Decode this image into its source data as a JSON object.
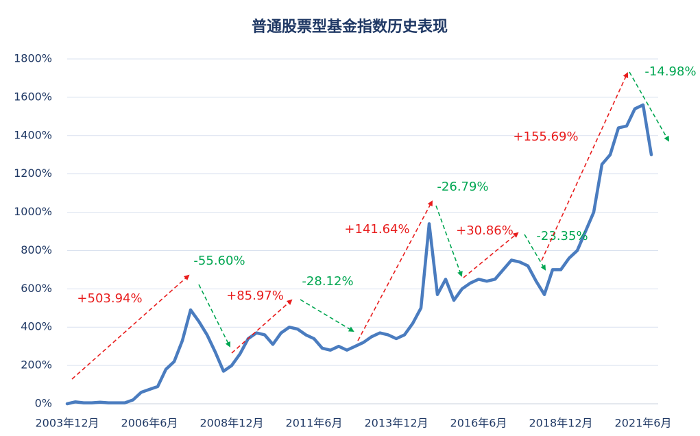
{
  "chart_data": {
    "type": "line",
    "title": "普通股票型基金指数历史表现",
    "categories": [
      "2003年12月",
      null,
      null,
      null,
      null,
      null,
      null,
      null,
      null,
      null,
      "2006年6月",
      null,
      null,
      null,
      null,
      null,
      null,
      null,
      null,
      null,
      "2008年12月",
      null,
      null,
      null,
      null,
      null,
      null,
      null,
      null,
      null,
      "2011年6月",
      null,
      null,
      null,
      null,
      null,
      null,
      null,
      null,
      null,
      "2013年12月",
      null,
      null,
      null,
      null,
      null,
      null,
      null,
      null,
      null,
      "2016年6月",
      null,
      null,
      null,
      null,
      null,
      null,
      null,
      null,
      null,
      "2018年12月",
      null,
      null,
      null,
      null,
      null,
      null,
      null,
      null,
      null,
      "2021年6月",
      null
    ],
    "series": [
      {
        "name": "普通股票型基金指数",
        "color": "#4a7cbf",
        "values": [
          0,
          10,
          5,
          5,
          8,
          5,
          5,
          5,
          20,
          60,
          75,
          90,
          180,
          220,
          330,
          490,
          430,
          360,
          270,
          170,
          200,
          260,
          340,
          370,
          360,
          310,
          370,
          400,
          390,
          360,
          340,
          290,
          280,
          300,
          280,
          300,
          320,
          350,
          370,
          360,
          340,
          360,
          420,
          500,
          940,
          570,
          650,
          540,
          600,
          630,
          650,
          640,
          650,
          700,
          750,
          740,
          720,
          640,
          570,
          700,
          700,
          760,
          800,
          900,
          1000,
          1250,
          1300,
          1440,
          1450,
          1540,
          1560,
          1300
        ]
      }
    ],
    "ylim": [
      0,
      1800
    ],
    "yticks": [
      {
        "value": 0,
        "label": "0%"
      },
      {
        "value": 200,
        "label": "200%"
      },
      {
        "value": 400,
        "label": "400%"
      },
      {
        "value": 600,
        "label": "600%"
      },
      {
        "value": 800,
        "label": "800%"
      },
      {
        "value": 1000,
        "label": "1000%"
      },
      {
        "value": 1200,
        "label": "1200%"
      },
      {
        "value": 1400,
        "label": "1400%"
      },
      {
        "value": 1600,
        "label": "1600%"
      },
      {
        "value": 1800,
        "label": "1800%"
      }
    ],
    "grid": true,
    "annotations": [
      {
        "text": "+503.94%",
        "color": "#e81c1c"
      },
      {
        "text": "-55.60%",
        "color": "#00a651"
      },
      {
        "text": "+85.97%",
        "color": "#e81c1c"
      },
      {
        "text": "-28.12%",
        "color": "#00a651"
      },
      {
        "text": "+141.64%",
        "color": "#e81c1c"
      },
      {
        "text": "-26.79%",
        "color": "#00a651"
      },
      {
        "text": "+30.86%",
        "color": "#e81c1c"
      },
      {
        "text": "-23.35%",
        "color": "#00a651"
      },
      {
        "text": "+155.69%",
        "color": "#e81c1c"
      },
      {
        "text": "-14.98%",
        "color": "#00a651"
      }
    ]
  }
}
